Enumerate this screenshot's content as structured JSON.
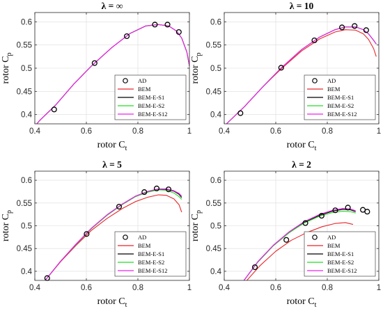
{
  "colors": {
    "BEM": "#e8262a",
    "BEM-E-S1": "#000000",
    "BEM-E-S2": "#22dd22",
    "BEM-E-S12": "#ee22ee",
    "AD": "#000000"
  },
  "chart_data": [
    {
      "type": "line",
      "title": "λ = ∞",
      "xlabel": "rotor C",
      "xlabel_sub": "t",
      "ylabel": "rotor C",
      "ylabel_sub": "p",
      "xlim": [
        0.4,
        1.0
      ],
      "ylim": [
        0.38,
        0.62
      ],
      "xticks": [
        "0.4",
        "0.6",
        "0.8",
        "1"
      ],
      "yticks": [
        "0.4",
        "0.45",
        "0.5",
        "0.55",
        "0.6"
      ],
      "legend_position": "bottom-right",
      "legend": [
        "AD",
        "BEM",
        "BEM-E-S1",
        "BEM-E-S2",
        "BEM-E-S12"
      ],
      "ad_points": {
        "x": [
          0.475,
          0.632,
          0.757,
          0.866,
          0.915,
          0.959
        ],
        "y": [
          0.411,
          0.511,
          0.569,
          0.594,
          0.594,
          0.578
        ]
      },
      "series": [
        {
          "name": "BEM",
          "x": [
            0.38,
            0.42,
            0.48,
            0.55,
            0.62,
            0.7,
            0.77,
            0.83,
            0.88,
            0.92,
            0.95,
            0.97,
            0.99,
            1.0
          ],
          "y": [
            0.362,
            0.388,
            0.42,
            0.465,
            0.505,
            0.545,
            0.575,
            0.591,
            0.594,
            0.591,
            0.58,
            0.565,
            0.535,
            0.505
          ]
        },
        {
          "name": "BEM-E-S1",
          "x": [
            0.38,
            0.42,
            0.48,
            0.55,
            0.62,
            0.7,
            0.77,
            0.83,
            0.88,
            0.92,
            0.95,
            0.97,
            0.99,
            1.0
          ],
          "y": [
            0.362,
            0.388,
            0.42,
            0.465,
            0.505,
            0.545,
            0.575,
            0.591,
            0.594,
            0.591,
            0.58,
            0.565,
            0.535,
            0.505
          ]
        },
        {
          "name": "BEM-E-S2",
          "x": [
            0.38,
            0.42,
            0.48,
            0.55,
            0.62,
            0.7,
            0.77,
            0.83,
            0.88,
            0.92,
            0.95,
            0.97,
            0.99,
            1.0
          ],
          "y": [
            0.362,
            0.388,
            0.42,
            0.465,
            0.505,
            0.545,
            0.575,
            0.591,
            0.594,
            0.591,
            0.58,
            0.565,
            0.535,
            0.505
          ]
        },
        {
          "name": "BEM-E-S12",
          "x": [
            0.38,
            0.42,
            0.48,
            0.55,
            0.62,
            0.7,
            0.77,
            0.83,
            0.88,
            0.92,
            0.95,
            0.97,
            0.99,
            1.0
          ],
          "y": [
            0.362,
            0.388,
            0.42,
            0.465,
            0.505,
            0.545,
            0.575,
            0.591,
            0.594,
            0.591,
            0.58,
            0.565,
            0.535,
            0.505
          ]
        }
      ]
    },
    {
      "type": "line",
      "title": "λ = 10",
      "xlabel": "rotor C",
      "xlabel_sub": "t",
      "ylabel": "rotor C",
      "ylabel_sub": "p",
      "xlim": [
        0.4,
        1.0
      ],
      "ylim": [
        0.38,
        0.62
      ],
      "xticks": [
        "0.4",
        "0.6",
        "0.8",
        "1"
      ],
      "yticks": [
        "0.4",
        "0.45",
        "0.5",
        "0.55",
        "0.6"
      ],
      "legend_position": "bottom-right",
      "legend": [
        "AD",
        "BEM",
        "BEM-E-S1",
        "BEM-E-S2",
        "BEM-E-S12"
      ],
      "ad_points": {
        "x": [
          0.463,
          0.621,
          0.75,
          0.857,
          0.906,
          0.951
        ],
        "y": [
          0.403,
          0.501,
          0.56,
          0.588,
          0.591,
          0.582
        ]
      },
      "series": [
        {
          "name": "BEM",
          "x": [
            0.38,
            0.42,
            0.48,
            0.55,
            0.62,
            0.7,
            0.77,
            0.83,
            0.87,
            0.91,
            0.94,
            0.96,
            0.98,
            0.99
          ],
          "y": [
            0.365,
            0.386,
            0.418,
            0.46,
            0.498,
            0.537,
            0.563,
            0.578,
            0.583,
            0.582,
            0.574,
            0.562,
            0.542,
            0.525
          ]
        },
        {
          "name": "BEM-E-S1",
          "x": [
            0.38,
            0.42,
            0.48,
            0.55,
            0.62,
            0.7,
            0.77,
            0.83,
            0.87,
            0.91,
            0.94,
            0.96,
            0.98,
            0.99
          ],
          "y": [
            0.365,
            0.386,
            0.418,
            0.46,
            0.5,
            0.54,
            0.567,
            0.583,
            0.589,
            0.589,
            0.583,
            0.574,
            0.56,
            0.552
          ]
        },
        {
          "name": "BEM-E-S2",
          "x": [
            0.38,
            0.42,
            0.48,
            0.55,
            0.62,
            0.7,
            0.77,
            0.83,
            0.87,
            0.91,
            0.94,
            0.96,
            0.98,
            0.99
          ],
          "y": [
            0.365,
            0.386,
            0.418,
            0.46,
            0.5,
            0.54,
            0.567,
            0.583,
            0.589,
            0.589,
            0.583,
            0.574,
            0.56,
            0.552
          ]
        },
        {
          "name": "BEM-E-S12",
          "x": [
            0.38,
            0.42,
            0.48,
            0.55,
            0.62,
            0.7,
            0.77,
            0.83,
            0.87,
            0.91,
            0.94,
            0.96,
            0.98,
            0.99
          ],
          "y": [
            0.365,
            0.386,
            0.418,
            0.46,
            0.5,
            0.54,
            0.567,
            0.583,
            0.589,
            0.589,
            0.583,
            0.574,
            0.56,
            0.552
          ]
        }
      ]
    },
    {
      "type": "line",
      "title": "λ = 5",
      "xlabel": "rotor C",
      "xlabel_sub": "t",
      "ylabel": "rotor C",
      "ylabel_sub": "p",
      "xlim": [
        0.4,
        1.0
      ],
      "ylim": [
        0.38,
        0.62
      ],
      "xticks": [
        "0.4",
        "0.6",
        "0.8",
        "1"
      ],
      "yticks": [
        "0.4",
        "0.45",
        "0.5",
        "0.55",
        "0.6"
      ],
      "legend_position": "bottom-right",
      "legend": [
        "AD",
        "BEM",
        "BEM-E-S1",
        "BEM-E-S2",
        "BEM-E-S12"
      ],
      "ad_points": {
        "x": [
          0.448,
          0.601,
          0.727,
          0.825,
          0.873,
          0.919
        ],
        "y": [
          0.385,
          0.482,
          0.542,
          0.574,
          0.582,
          0.58
        ]
      },
      "series": [
        {
          "name": "BEM",
          "x": [
            0.44,
            0.5,
            0.56,
            0.62,
            0.68,
            0.74,
            0.79,
            0.84,
            0.88,
            0.91,
            0.94,
            0.96,
            0.97
          ],
          "y": [
            0.38,
            0.421,
            0.457,
            0.49,
            0.516,
            0.538,
            0.553,
            0.563,
            0.568,
            0.567,
            0.559,
            0.546,
            0.53
          ]
        },
        {
          "name": "BEM-E-S1",
          "x": [
            0.44,
            0.5,
            0.56,
            0.62,
            0.68,
            0.74,
            0.79,
            0.84,
            0.88,
            0.91,
            0.94,
            0.96,
            0.97
          ],
          "y": [
            0.38,
            0.422,
            0.459,
            0.494,
            0.523,
            0.547,
            0.564,
            0.575,
            0.58,
            0.58,
            0.576,
            0.569,
            0.562
          ]
        },
        {
          "name": "BEM-E-S2",
          "x": [
            0.44,
            0.5,
            0.56,
            0.62,
            0.68,
            0.74,
            0.79,
            0.84,
            0.88,
            0.91,
            0.94,
            0.96,
            0.97
          ],
          "y": [
            0.38,
            0.422,
            0.459,
            0.494,
            0.523,
            0.547,
            0.564,
            0.574,
            0.579,
            0.578,
            0.572,
            0.564,
            0.558
          ]
        },
        {
          "name": "BEM-E-S12",
          "x": [
            0.44,
            0.5,
            0.56,
            0.62,
            0.68,
            0.74,
            0.79,
            0.84,
            0.88,
            0.91,
            0.94,
            0.96,
            0.97
          ],
          "y": [
            0.38,
            0.422,
            0.46,
            0.495,
            0.524,
            0.548,
            0.565,
            0.576,
            0.581,
            0.581,
            0.577,
            0.571,
            0.565
          ]
        }
      ]
    },
    {
      "type": "line",
      "title": "λ = 2",
      "xlabel": "rotor C",
      "xlabel_sub": "t",
      "ylabel": "rotor C",
      "ylabel_sub": "p",
      "xlim": [
        0.4,
        1.0
      ],
      "ylim": [
        0.38,
        0.62
      ],
      "xticks": [
        "0.4",
        "0.6",
        "0.8",
        "1"
      ],
      "yticks": [
        "0.4",
        "0.45",
        "0.5",
        "0.55",
        "0.6"
      ],
      "legend_position": "bottom-right",
      "legend": [
        "AD",
        "BEM",
        "BEM-E-S1",
        "BEM-E-S2",
        "BEM-E-S12"
      ],
      "ad_points": {
        "x": [
          0.519,
          0.641,
          0.715,
          0.778,
          0.831,
          0.88,
          0.938,
          0.955
        ],
        "y": [
          0.409,
          0.469,
          0.506,
          0.522,
          0.534,
          0.54,
          0.535,
          0.531
        ]
      },
      "series": [
        {
          "name": "BEM",
          "x": [
            0.48,
            0.54,
            0.6,
            0.66,
            0.72,
            0.78,
            0.83,
            0.87,
            0.9
          ],
          "y": [
            0.375,
            0.413,
            0.444,
            0.468,
            0.485,
            0.498,
            0.505,
            0.507,
            0.503
          ]
        },
        {
          "name": "BEM-E-S1",
          "x": [
            0.47,
            0.53,
            0.59,
            0.65,
            0.71,
            0.77,
            0.82,
            0.86,
            0.89,
            0.91
          ],
          "y": [
            0.375,
            0.42,
            0.456,
            0.484,
            0.507,
            0.523,
            0.532,
            0.536,
            0.535,
            0.531
          ]
        },
        {
          "name": "BEM-E-S2",
          "x": [
            0.47,
            0.53,
            0.59,
            0.65,
            0.71,
            0.77,
            0.82,
            0.86,
            0.89,
            0.91
          ],
          "y": [
            0.375,
            0.42,
            0.456,
            0.484,
            0.506,
            0.521,
            0.529,
            0.532,
            0.531,
            0.528
          ]
        },
        {
          "name": "BEM-E-S12",
          "x": [
            0.47,
            0.53,
            0.59,
            0.65,
            0.71,
            0.77,
            0.82,
            0.86,
            0.89,
            0.91
          ],
          "y": [
            0.375,
            0.421,
            0.457,
            0.486,
            0.509,
            0.525,
            0.534,
            0.538,
            0.537,
            0.533
          ]
        }
      ]
    }
  ]
}
